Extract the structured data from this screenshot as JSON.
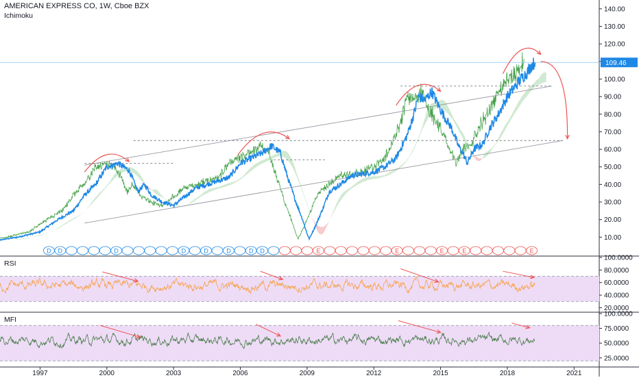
{
  "header": {
    "symbol_line": "AMERICAN EXPRESS CO, 1W, Cboe BZX",
    "indicator": "Ichimoku"
  },
  "panes": {
    "rsi_label": "RSI",
    "mfi_label": "MFI"
  },
  "colors": {
    "price": "#1e88e5",
    "lagging_span": "#43a047",
    "cloud_bull": "#a5d6a7",
    "cloud_bear": "#ef9a9a",
    "rsi": "#f5a34e",
    "mfi": "#4a7d4a",
    "band": "#eedcf7",
    "annotation": "#ef5350",
    "last_price_bg": "#1e88e5"
  },
  "chart_data": [
    {
      "type": "line",
      "name": "price",
      "ylim": [
        0,
        145
      ],
      "yticks": [
        "140.00",
        "130.00",
        "120.00",
        "110.00",
        "100.00",
        "90.00",
        "80.00",
        "70.00",
        "60.00",
        "50.00",
        "40.00",
        "30.00",
        "20.00",
        "10.00"
      ],
      "ytick_values": [
        140,
        130,
        120,
        110,
        100,
        90,
        80,
        70,
        60,
        50,
        40,
        30,
        20,
        10
      ],
      "last_price": 109.46,
      "last_price_label": "109.46",
      "x_dates": [
        1995.0,
        1996.0,
        1997.0,
        1997.8,
        1998.5,
        1999.0,
        1999.5,
        2000.0,
        2000.5,
        2001.0,
        2001.4,
        2001.7,
        2002.0,
        2002.5,
        2003.0,
        2003.5,
        2004.0,
        2004.5,
        2005.0,
        2005.5,
        2006.0,
        2006.5,
        2007.0,
        2007.4,
        2007.8,
        2008.1,
        2008.5,
        2008.8,
        2009.0,
        2009.1,
        2009.4,
        2009.7,
        2010.0,
        2010.5,
        2011.0,
        2011.5,
        2012.0,
        2012.5,
        2013.0,
        2013.5,
        2013.8,
        2014.0,
        2014.3,
        2014.6,
        2014.9,
        2015.2,
        2015.5,
        2015.8,
        2016.0,
        2016.2,
        2016.5,
        2016.9,
        2017.2,
        2017.6,
        2018.0,
        2018.3,
        2018.6,
        2018.9,
        2019.1,
        2019.25
      ],
      "y_values": [
        8,
        10,
        13,
        20,
        25,
        34,
        40,
        50,
        52,
        48,
        36,
        40,
        34,
        30,
        28,
        33,
        38,
        40,
        42,
        44,
        52,
        55,
        58,
        62,
        58,
        45,
        30,
        20,
        12,
        9,
        17,
        26,
        36,
        40,
        45,
        46,
        47,
        50,
        55,
        68,
        80,
        90,
        88,
        93,
        85,
        78,
        72,
        62,
        58,
        52,
        60,
        63,
        72,
        80,
        90,
        95,
        100,
        104,
        108,
        109.46
      ],
      "channel_lines": [
        {
          "from": [
            1999.0,
            51
          ],
          "to": [
            2020.0,
            96
          ]
        },
        {
          "from": [
            1999.0,
            18
          ],
          "to": [
            2020.5,
            65
          ]
        }
      ],
      "resistance_levels": [
        {
          "y": 52,
          "from": 1999.0,
          "to": 2003.0
        },
        {
          "y": 65,
          "from": 2001.2,
          "to": 2020.5
        },
        {
          "y": 54,
          "from": 2007.5,
          "to": 2009.8
        },
        {
          "y": 96,
          "from": 2013.2,
          "to": 2020.0
        }
      ],
      "tops": [
        {
          "from": [
            1999.0,
            47
          ],
          "to": [
            2001.0,
            53
          ]
        },
        {
          "from": [
            2005.9,
            57
          ],
          "to": [
            2008.2,
            66
          ]
        },
        {
          "from": [
            2013.0,
            85
          ],
          "to": [
            2015.0,
            93
          ]
        },
        {
          "from": [
            2017.8,
            103
          ],
          "to": [
            2019.5,
            114
          ]
        }
      ],
      "forecast": {
        "from": [
          2019.5,
          110
        ],
        "to": [
          2020.7,
          66
        ]
      },
      "event_markers": {
        "dividend": [
          "D",
          "D",
          "D",
          "D",
          "D",
          "D",
          "D",
          "D"
        ],
        "earnings": [
          "E",
          "E",
          "E",
          "E",
          "E"
        ]
      }
    },
    {
      "type": "line",
      "name": "RSI",
      "ylim": [
        15,
        100
      ],
      "yticks": [
        "100.0000",
        "80.0000",
        "60.0000",
        "40.0000",
        "20.0000"
      ],
      "ytick_values": [
        100,
        80,
        60,
        40,
        20
      ],
      "band": [
        30,
        70
      ],
      "divergences": [
        {
          "from": [
            1999.8,
            77
          ],
          "to": [
            2001.4,
            62
          ]
        },
        {
          "from": [
            2006.9,
            78
          ],
          "to": [
            2007.9,
            65
          ]
        },
        {
          "from": [
            2013.2,
            82
          ],
          "to": [
            2014.9,
            61
          ]
        },
        {
          "from": [
            2017.8,
            78
          ],
          "to": [
            2019.2,
            68
          ]
        }
      ]
    },
    {
      "type": "line",
      "name": "MFI",
      "ylim": [
        12,
        100
      ],
      "yticks": [
        "100.0000",
        "75.0000",
        "50.0000",
        "25.0000"
      ],
      "ytick_values": [
        100,
        75,
        50,
        25
      ],
      "band": [
        20,
        80
      ],
      "divergences": [
        {
          "from": [
            1999.7,
            80
          ],
          "to": [
            2001.5,
            60
          ]
        },
        {
          "from": [
            2006.7,
            82
          ],
          "to": [
            2007.8,
            62
          ]
        },
        {
          "from": [
            2013.1,
            88
          ],
          "to": [
            2015.0,
            68
          ]
        },
        {
          "from": [
            2018.2,
            84
          ],
          "to": [
            2019.0,
            76
          ]
        }
      ]
    }
  ],
  "x_axis": {
    "ticks": [
      "1997",
      "2000",
      "2003",
      "2006",
      "2009",
      "2012",
      "2015",
      "2018",
      "2021"
    ],
    "tick_values": [
      1997,
      2000,
      2003,
      2006,
      2009,
      2012,
      2015,
      2018,
      2021
    ]
  }
}
